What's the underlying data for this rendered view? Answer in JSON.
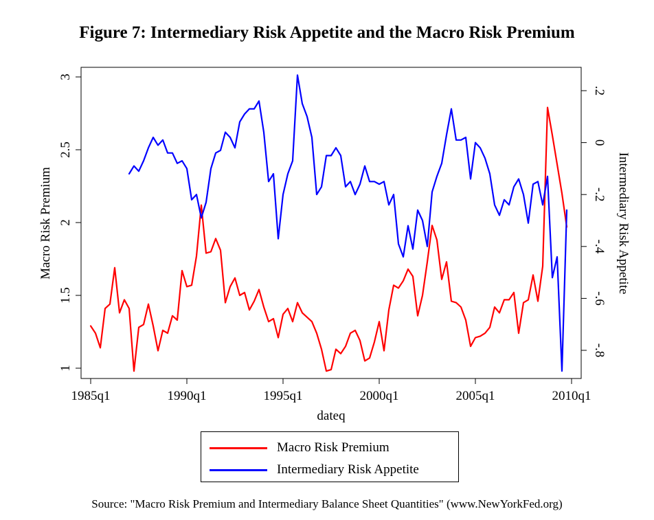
{
  "chart_data": {
    "type": "line",
    "title": "Figure 7: Intermediary Risk Appetite and the Macro Risk Premium",
    "xlabel": "dateq",
    "ylabel_left": "Macro Risk Premium",
    "ylabel_right": "Intermediary Risk Appetite",
    "x_ticks": [
      "1985q1",
      "1990q1",
      "1995q1",
      "2000q1",
      "2005q1",
      "2010q1"
    ],
    "y_left_ticks": [
      "1",
      "1.5",
      "2",
      "2.5",
      "3"
    ],
    "y_right_ticks": [
      "-.8",
      "-.6",
      "-.4",
      "-.2",
      "0",
      ".2"
    ],
    "xlim": [
      1985.0,
      2010.0
    ],
    "ylim_left": [
      0.95,
      3.02
    ],
    "ylim_right": [
      -0.88,
      0.26
    ],
    "grid": false,
    "legend_position": "bottom",
    "series": [
      {
        "name": "Macro Risk Premium",
        "axis": "left",
        "color": "#ff0000",
        "x": [
          1985.0,
          1985.25,
          1985.5,
          1985.75,
          1986.0,
          1986.25,
          1986.5,
          1986.75,
          1987.0,
          1987.25,
          1987.5,
          1987.75,
          1988.0,
          1988.25,
          1988.5,
          1988.75,
          1989.0,
          1989.25,
          1989.5,
          1989.75,
          1990.0,
          1990.25,
          1990.5,
          1990.75,
          1991.0,
          1991.25,
          1991.5,
          1991.75,
          1992.0,
          1992.25,
          1992.5,
          1992.75,
          1993.0,
          1993.25,
          1993.5,
          1993.75,
          1994.0,
          1994.25,
          1994.5,
          1994.75,
          1995.0,
          1995.25,
          1995.5,
          1995.75,
          1996.0,
          1996.25,
          1996.5,
          1996.75,
          1997.0,
          1997.25,
          1997.5,
          1997.75,
          1998.0,
          1998.25,
          1998.5,
          1998.75,
          1999.0,
          1999.25,
          1999.5,
          1999.75,
          2000.0,
          2000.25,
          2000.5,
          2000.75,
          2001.0,
          2001.25,
          2001.5,
          2001.75,
          2002.0,
          2002.25,
          2002.5,
          2002.75,
          2003.0,
          2003.25,
          2003.5,
          2003.75,
          2004.0,
          2004.25,
          2004.5,
          2004.75,
          2005.0,
          2005.25,
          2005.5,
          2005.75,
          2006.0,
          2006.25,
          2006.5,
          2006.75,
          2007.0,
          2007.25,
          2007.5,
          2007.75,
          2008.0,
          2008.25,
          2008.5,
          2008.75,
          2009.0,
          2009.25,
          2009.5,
          2009.75
        ],
        "values": [
          1.29,
          1.24,
          1.14,
          1.41,
          1.44,
          1.69,
          1.38,
          1.47,
          1.41,
          0.98,
          1.28,
          1.3,
          1.44,
          1.29,
          1.12,
          1.26,
          1.24,
          1.36,
          1.33,
          1.67,
          1.56,
          1.57,
          1.77,
          2.12,
          1.79,
          1.8,
          1.89,
          1.81,
          1.45,
          1.56,
          1.62,
          1.5,
          1.52,
          1.4,
          1.46,
          1.54,
          1.42,
          1.32,
          1.34,
          1.21,
          1.37,
          1.41,
          1.32,
          1.45,
          1.38,
          1.35,
          1.32,
          1.24,
          1.13,
          0.98,
          0.99,
          1.13,
          1.1,
          1.15,
          1.24,
          1.26,
          1.19,
          1.05,
          1.07,
          1.18,
          1.32,
          1.12,
          1.4,
          1.57,
          1.55,
          1.6,
          1.68,
          1.63,
          1.36,
          1.5,
          1.73,
          1.98,
          1.88,
          1.61,
          1.73,
          1.46,
          1.45,
          1.42,
          1.33,
          1.15,
          1.21,
          1.22,
          1.24,
          1.28,
          1.42,
          1.38,
          1.47,
          1.47,
          1.52,
          1.24,
          1.45,
          1.47,
          1.64,
          1.46,
          1.7,
          2.79,
          2.6,
          2.4,
          2.2,
          1.97
        ]
      },
      {
        "name": "Intermediary Risk Appetite",
        "axis": "right",
        "color": "#0000ff",
        "x": [
          1987.0,
          1987.25,
          1987.5,
          1987.75,
          1988.0,
          1988.25,
          1988.5,
          1988.75,
          1989.0,
          1989.25,
          1989.5,
          1989.75,
          1990.0,
          1990.25,
          1990.5,
          1990.75,
          1991.0,
          1991.25,
          1991.5,
          1991.75,
          1992.0,
          1992.25,
          1992.5,
          1992.75,
          1993.0,
          1993.25,
          1993.5,
          1993.75,
          1994.0,
          1994.25,
          1994.5,
          1994.75,
          1995.0,
          1995.25,
          1995.5,
          1995.75,
          1996.0,
          1996.25,
          1996.5,
          1996.75,
          1997.0,
          1997.25,
          1997.5,
          1997.75,
          1998.0,
          1998.25,
          1998.5,
          1998.75,
          1999.0,
          1999.25,
          1999.5,
          1999.75,
          2000.0,
          2000.25,
          2000.5,
          2000.75,
          2001.0,
          2001.25,
          2001.5,
          2001.75,
          2002.0,
          2002.25,
          2002.5,
          2002.75,
          2003.0,
          2003.25,
          2003.5,
          2003.75,
          2004.0,
          2004.25,
          2004.5,
          2004.75,
          2005.0,
          2005.25,
          2005.5,
          2005.75,
          2006.0,
          2006.25,
          2006.5,
          2006.75,
          2007.0,
          2007.25,
          2007.5,
          2007.75,
          2008.0,
          2008.25,
          2008.5,
          2008.75,
          2009.0,
          2009.25,
          2009.5,
          2009.75
        ],
        "values": [
          -0.12,
          -0.09,
          -0.11,
          -0.07,
          -0.02,
          0.02,
          -0.01,
          0.01,
          -0.04,
          -0.04,
          -0.08,
          -0.07,
          -0.1,
          -0.22,
          -0.2,
          -0.29,
          -0.23,
          -0.1,
          -0.04,
          -0.03,
          0.04,
          0.02,
          -0.02,
          0.08,
          0.11,
          0.13,
          0.13,
          0.16,
          0.04,
          -0.15,
          -0.12,
          -0.37,
          -0.2,
          -0.12,
          -0.07,
          0.26,
          0.15,
          0.1,
          0.02,
          -0.2,
          -0.17,
          -0.05,
          -0.05,
          -0.02,
          -0.05,
          -0.17,
          -0.15,
          -0.2,
          -0.16,
          -0.09,
          -0.15,
          -0.15,
          -0.16,
          -0.15,
          -0.24,
          -0.2,
          -0.39,
          -0.44,
          -0.32,
          -0.41,
          -0.26,
          -0.3,
          -0.4,
          -0.19,
          -0.13,
          -0.08,
          0.03,
          0.13,
          0.01,
          0.01,
          0.02,
          -0.14,
          0.0,
          -0.02,
          -0.06,
          -0.12,
          -0.24,
          -0.28,
          -0.22,
          -0.24,
          -0.17,
          -0.14,
          -0.2,
          -0.31,
          -0.16,
          -0.15,
          -0.24,
          -0.13,
          -0.52,
          -0.44,
          -0.88,
          -0.26
        ]
      }
    ]
  },
  "source_note": "Source: \"Macro Risk Premium and Intermediary Balance Sheet Quantities\" (www.NewYorkFed.org)"
}
